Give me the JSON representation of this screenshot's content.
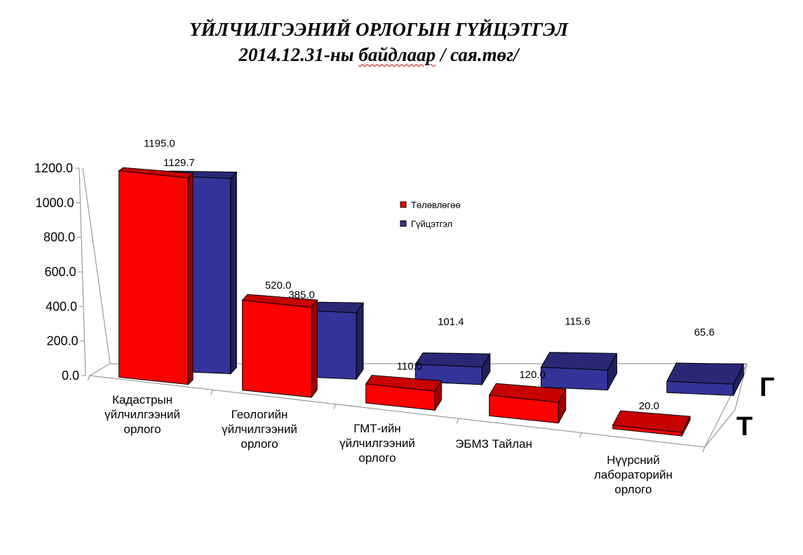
{
  "title": {
    "line1": "ҮЙЛЧИЛГЭЭНИЙ ОРЛОГЫН ГҮЙЦЭТГЭЛ",
    "line2_prefix": "2014.12.31-ны ",
    "line2_marked": "байдлаар",
    "line2_suffix": "  / сая.төг/"
  },
  "chart_data": {
    "type": "bar",
    "style": "3d-clustered-bar",
    "categories": [
      [
        "Кадастрын",
        "үйлчилгээний",
        "орлого"
      ],
      [
        "Геологийн",
        "үйлчилгээний",
        "орлого"
      ],
      [
        "ГМТ-ийн",
        "үйлчилгээний",
        "орлого"
      ],
      [
        "ЭБМЗ Тайлан"
      ],
      [
        "Нүүрсний",
        "лабораторийн",
        "орлого"
      ]
    ],
    "series": [
      {
        "name": "Төлөвлөгөө",
        "depth_label": "Т",
        "color": "#ff0000",
        "values": [
          1195.0,
          520.0,
          110.0,
          120.0,
          20.0
        ]
      },
      {
        "name": "Гүйцэтгэл",
        "depth_label": "Г",
        "color": "#333399",
        "values": [
          1129.7,
          385.0,
          101.4,
          115.6,
          65.6
        ]
      }
    ],
    "value_labels": [
      [
        "1195.0",
        "520.0",
        "110.0",
        "120.0",
        "20.0"
      ],
      [
        "1129.7",
        "385.0",
        "101.4",
        "115.6",
        "65.6"
      ]
    ],
    "y_ticks": [
      "0.0",
      "200.0",
      "400.0",
      "600.0",
      "800.0",
      "1000.0",
      "1200.0"
    ],
    "y_tick_values": [
      0,
      200,
      400,
      600,
      800,
      1000,
      1200
    ],
    "ylim": [
      0,
      1200
    ],
    "legend": {
      "placement": "center-right",
      "entries": [
        "Төлөвлөгөө",
        "Гүйцэтгэл"
      ]
    },
    "grid": false
  }
}
